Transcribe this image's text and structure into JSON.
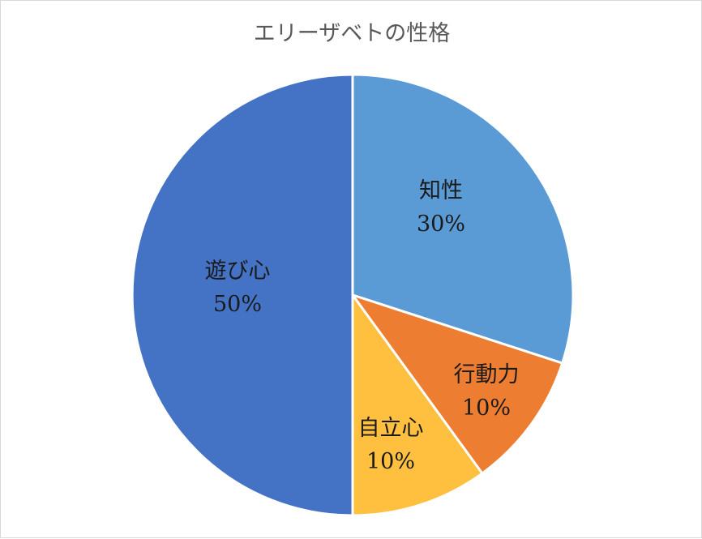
{
  "chart_data": {
    "type": "pie",
    "title": "エリーザベトの性格",
    "slices": [
      {
        "label": "知性",
        "value": 30,
        "display": "30%",
        "color": "#5b9bd5"
      },
      {
        "label": "行動力",
        "value": 10,
        "display": "10%",
        "color": "#ed7d31"
      },
      {
        "label": "自立心",
        "value": 10,
        "display": "10%",
        "color": "#ffc03f"
      },
      {
        "label": "遊び心",
        "value": 50,
        "display": "50%",
        "color": "#4472c4"
      }
    ],
    "start_angle": "12 o'clock",
    "direction": "clockwise",
    "legend": "none",
    "data_labels": "inside"
  }
}
